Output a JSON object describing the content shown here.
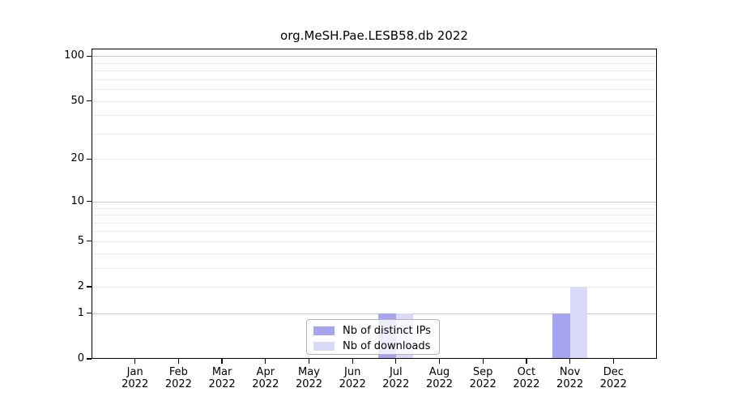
{
  "chart_data": {
    "type": "bar",
    "title": "org.MeSH.Pae.LESB58.db 2022",
    "categories": [
      "Jan",
      "Feb",
      "Mar",
      "Apr",
      "May",
      "Jun",
      "Jul",
      "Aug",
      "Sep",
      "Oct",
      "Nov",
      "Dec"
    ],
    "year_label": "2022",
    "series": [
      {
        "name": "Nb of distinct IPs",
        "color": "#a5a5f0",
        "values": [
          0,
          0,
          0,
          0,
          0,
          0,
          1,
          0,
          0,
          0,
          1,
          0
        ]
      },
      {
        "name": "Nb of downloads",
        "color": "#dadaf8",
        "values": [
          0,
          0,
          0,
          0,
          0,
          0,
          1,
          0,
          0,
          0,
          2,
          0
        ]
      }
    ],
    "y_scale": "log1p",
    "y_tick_values": [
      0,
      1,
      2,
      5,
      10,
      20,
      50,
      100
    ],
    "y_minor_gridlines": [
      3,
      4,
      6,
      7,
      8,
      9,
      30,
      40,
      60,
      70,
      80,
      90
    ],
    "y_emphasized_gridlines": [
      1,
      10,
      100
    ],
    "ylim": [
      0,
      112
    ],
    "grid": true,
    "legend_position": "bottom-center",
    "colors": {
      "grid_emphasized": "#c8c8c8",
      "grid_light": "#ebebeb",
      "axis": "#000000",
      "legend_border": "#b3b3b3"
    }
  }
}
